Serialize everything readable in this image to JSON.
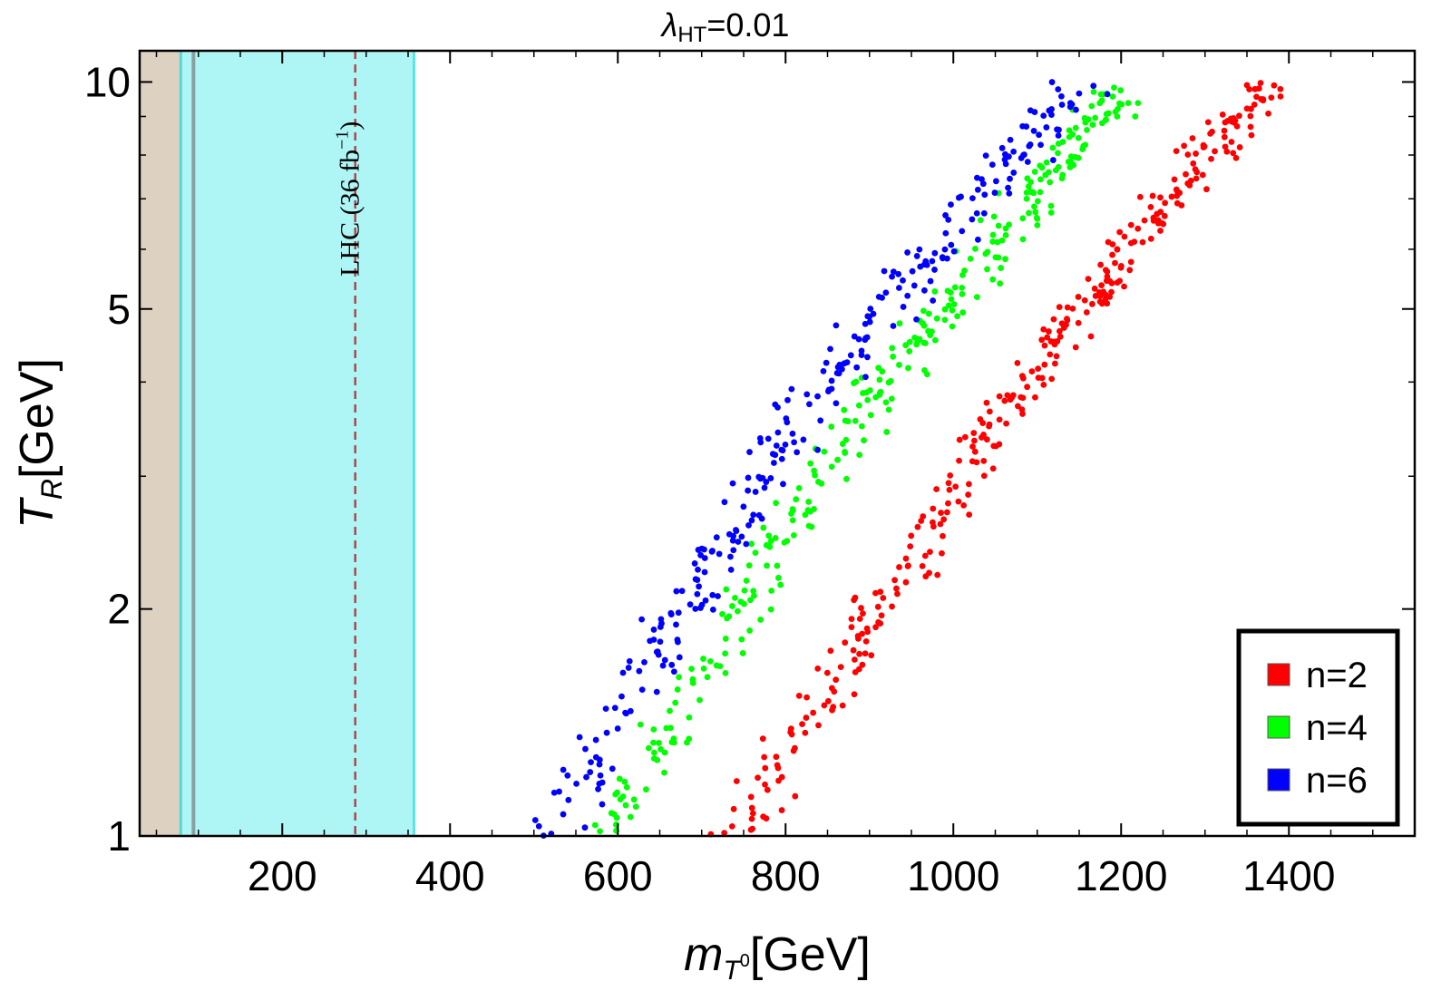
{
  "chart_data": {
    "type": "scatter",
    "title_symbol": "λ",
    "title_subscript": "HT",
    "title_value": "=0.01",
    "xlabel_main": "m",
    "xlabel_sub": "T",
    "xlabel_sup": "0",
    "xlabel_unit": "[GeV]",
    "ylabel_main": "T",
    "ylabel_sub": "R",
    "ylabel_unit": "[GeV]",
    "xlim": [
      30,
      1550
    ],
    "ylim": [
      1,
      11
    ],
    "yscale": "log",
    "x_ticks": [
      200,
      400,
      600,
      800,
      1000,
      1200,
      1400
    ],
    "x_tick_labels": [
      "200",
      "400",
      "600",
      "800",
      "1000",
      "1200",
      "1400"
    ],
    "y_ticks": [
      1,
      2,
      5,
      10
    ],
    "y_tick_labels": [
      "1",
      "2",
      "5",
      "10"
    ],
    "exclusion_regions": [
      {
        "name": "tan-region",
        "x": [
          30,
          79
        ],
        "color": "#ddd1c1"
      },
      {
        "name": "lhc-cyan-region",
        "x": [
          79,
          357
        ],
        "color": "#aef6f6"
      }
    ],
    "reference_lines": [
      {
        "name": "lhc-dashed-line",
        "x": 287,
        "color": "#b04848"
      }
    ],
    "annotation": {
      "text_main": "LHC (36 fb",
      "text_sup": "−1",
      "text_close": ")",
      "x": 250,
      "y": 7
    },
    "series": [
      {
        "name": "n=2",
        "label": "n=2",
        "color": "#ff0000",
        "curve": [
          [
            742,
            1.0
          ],
          [
            1060,
            3.7
          ],
          [
            1375,
            10.0
          ]
        ],
        "points": 330
      },
      {
        "name": "n=4",
        "label": "n=4",
        "color": "#00ff00",
        "curve": [
          [
            578,
            1.0
          ],
          [
            888,
            3.6
          ],
          [
            1205,
            10.0
          ]
        ],
        "points": 300
      },
      {
        "name": "n=6",
        "label": "n=6",
        "color": "#0000ff",
        "curve": [
          [
            520,
            1.0
          ],
          [
            822,
            3.7
          ],
          [
            1150,
            10.0
          ]
        ],
        "points": 280
      }
    ],
    "legend": {
      "position": "bottom-right"
    }
  }
}
